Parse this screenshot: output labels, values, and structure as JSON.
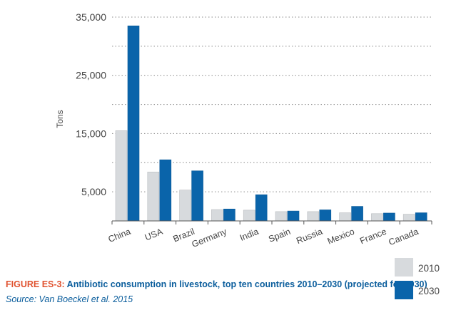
{
  "chart_data": {
    "type": "bar",
    "categories": [
      "China",
      "USA",
      "Brazil",
      "Germany",
      "India",
      "Spain",
      "Russia",
      "Mexico",
      "France",
      "Canada"
    ],
    "series": [
      {
        "name": "2010",
        "color": "#d7dadd",
        "values": [
          15500,
          8400,
          5300,
          1950,
          1850,
          1600,
          1600,
          1400,
          1250,
          1150
        ]
      },
      {
        "name": "2030",
        "color": "#0a64aa",
        "values": [
          33500,
          10500,
          8600,
          2050,
          4500,
          1700,
          1900,
          2500,
          1350,
          1400
        ]
      }
    ],
    "ylabel": "Tons",
    "ylim": [
      0,
      35000
    ],
    "y_ticks": [
      "5,000",
      "15,000",
      "25,000",
      "35,000"
    ],
    "y_tick_values": [
      5000,
      15000,
      25000,
      35000
    ],
    "grid": "dotted"
  },
  "caption": {
    "label": "FIGURE ES-3:",
    "text": " Antibiotic consumption in livestock, top ten countries 2010–2030 (projected for 2030)",
    "source": "Source: Van Boeckel et al. 2015"
  },
  "legend": {
    "items": [
      {
        "label": "2010",
        "color": "#d7dadd"
      },
      {
        "label": "2030",
        "color": "#0a64aa"
      }
    ]
  }
}
